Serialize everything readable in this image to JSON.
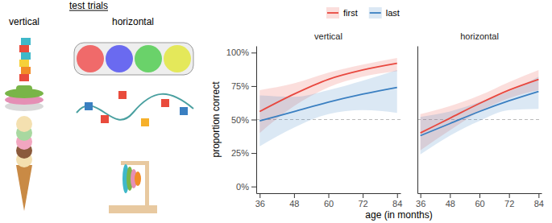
{
  "figure": {
    "heading": "test trials",
    "image_labels": [
      "vertical",
      "horizontal"
    ],
    "xlabel": "age (in months)",
    "ylabel": "proportion correct",
    "legend": "top"
  },
  "chart_data": [
    {
      "type": "line",
      "title": "vertical",
      "x": [
        36,
        48,
        60,
        72,
        84
      ],
      "series": [
        {
          "name": "first",
          "color": "#e8483f",
          "values": [
            56,
            69,
            80,
            87,
            92
          ],
          "lower": [
            40,
            60,
            74,
            82,
            86
          ],
          "upper": [
            72,
            77,
            85,
            91,
            96
          ]
        },
        {
          "name": "last",
          "color": "#3a7fc1",
          "values": [
            49,
            56,
            63,
            69,
            74
          ],
          "lower": [
            30,
            44,
            54,
            57,
            55
          ],
          "upper": [
            68,
            67,
            72,
            79,
            87
          ]
        }
      ],
      "xlim": [
        34.8,
        85.2
      ],
      "xticks": [
        36,
        48,
        60,
        72,
        84
      ],
      "ylim": [
        -5,
        105
      ],
      "yticks": [
        {
          "value": 0,
          "label": "0%"
        },
        {
          "value": 25,
          "label": "25%"
        },
        {
          "value": 50,
          "label": "50%"
        },
        {
          "value": 75,
          "label": "75%"
        },
        {
          "value": 100,
          "label": "100%"
        }
      ],
      "hline": 50,
      "grid": false
    },
    {
      "type": "line",
      "title": "horizontal",
      "x": [
        36,
        48,
        60,
        72,
        84
      ],
      "series": [
        {
          "name": "first",
          "color": "#e8483f",
          "values": [
            40,
            51,
            62,
            72,
            80
          ],
          "lower": [
            27,
            42,
            56,
            66,
            72
          ],
          "upper": [
            54,
            60,
            68,
            78,
            87
          ]
        },
        {
          "name": "last",
          "color": "#3a7fc1",
          "values": [
            38,
            47,
            56,
            64,
            71
          ],
          "lower": [
            24,
            38,
            49,
            57,
            58
          ],
          "upper": [
            52,
            56,
            63,
            71,
            82
          ]
        }
      ],
      "xlim": [
        34.8,
        85.2
      ],
      "xticks": [
        36,
        48,
        60,
        72,
        84
      ],
      "ylim": [
        -5,
        105
      ],
      "hline": 50,
      "grid": false,
      "tick_labels": "x"
    }
  ]
}
